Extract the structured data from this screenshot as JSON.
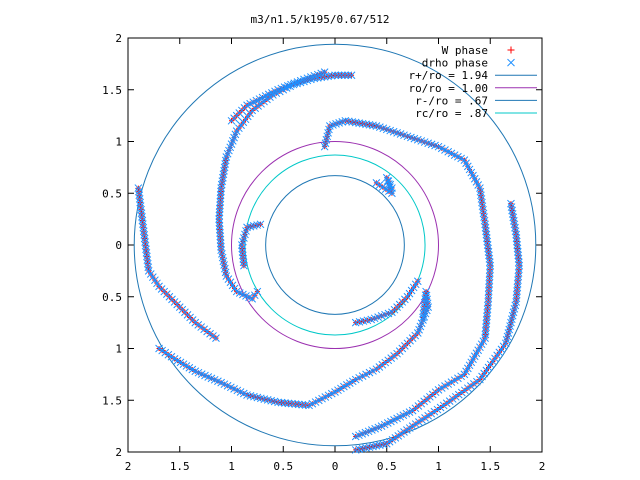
{
  "chart_data": {
    "type": "scatter",
    "title": "m3/n1.5/k195/0.67/512",
    "xlabel": "",
    "ylabel": "",
    "xlim": [
      -2,
      2
    ],
    "ylim": [
      -2,
      2
    ],
    "x_ticks": [
      -2,
      -1.5,
      -1,
      -0.5,
      0,
      0.5,
      1,
      1.5,
      2
    ],
    "y_ticks": [
      -2,
      -1.5,
      -1,
      -0.5,
      0,
      0.5,
      1,
      1.5,
      2
    ],
    "x_tick_labels": [
      "2",
      "1.5",
      "1",
      "0.5",
      "0",
      "0.5",
      "1",
      "1.5",
      "2"
    ],
    "y_tick_labels": [
      "2",
      "1.5",
      "1",
      "0.5",
      "0",
      "0.5",
      "1",
      "1.5",
      "2"
    ],
    "grid": false,
    "legend_position": "top-right",
    "series": [
      {
        "name": "W phase",
        "marker": "plus",
        "color": "#ff0000",
        "spirals": [
          {
            "id": "arm-a",
            "points": [
              [
                0.16,
                1.64
              ],
              [
                0.0,
                1.64
              ],
              [
                -0.2,
                1.61
              ],
              [
                -0.4,
                1.55
              ],
              [
                -0.6,
                1.45
              ],
              [
                -0.8,
                1.3
              ],
              [
                -0.95,
                1.1
              ],
              [
                -1.05,
                0.85
              ],
              [
                -1.1,
                0.55
              ],
              [
                -1.12,
                0.25
              ],
              [
                -1.1,
                -0.05
              ],
              [
                -1.05,
                -0.3
              ],
              [
                -0.95,
                -0.45
              ],
              [
                -0.8,
                -0.52
              ],
              [
                -0.75,
                -0.45
              ]
            ]
          },
          {
            "id": "arm-b",
            "points": [
              [
                -0.72,
                0.2
              ],
              [
                -0.85,
                0.17
              ],
              [
                -0.9,
                0.0
              ],
              [
                -0.88,
                -0.2
              ]
            ]
          },
          {
            "id": "arm-c",
            "points": [
              [
                -1.7,
                -1.0
              ],
              [
                -1.55,
                -1.1
              ],
              [
                -1.35,
                -1.22
              ],
              [
                -1.1,
                -1.33
              ],
              [
                -0.85,
                -1.45
              ],
              [
                -0.55,
                -1.52
              ],
              [
                -0.25,
                -1.55
              ],
              [
                0.0,
                -1.42
              ],
              [
                0.2,
                -1.3
              ],
              [
                0.4,
                -1.2
              ],
              [
                0.6,
                -1.05
              ],
              [
                0.8,
                -0.85
              ],
              [
                0.9,
                -0.6
              ],
              [
                0.88,
                -0.45
              ],
              [
                0.85,
                -0.7
              ]
            ]
          },
          {
            "id": "arm-d",
            "points": [
              [
                -0.1,
                0.95
              ],
              [
                -0.05,
                1.15
              ],
              [
                0.1,
                1.2
              ],
              [
                0.4,
                1.15
              ],
              [
                0.7,
                1.05
              ],
              [
                1.0,
                0.95
              ],
              [
                1.25,
                0.82
              ],
              [
                1.4,
                0.55
              ],
              [
                1.45,
                0.2
              ],
              [
                1.5,
                -0.2
              ],
              [
                1.48,
                -0.55
              ],
              [
                1.45,
                -0.9
              ],
              [
                1.25,
                -1.25
              ],
              [
                1.0,
                -1.4
              ],
              [
                0.75,
                -1.6
              ],
              [
                0.45,
                -1.75
              ],
              [
                0.2,
                -1.85
              ]
            ]
          },
          {
            "id": "arm-e",
            "points": [
              [
                -1.0,
                1.2
              ],
              [
                -0.85,
                1.35
              ],
              [
                -0.55,
                1.5
              ],
              [
                -0.3,
                1.6
              ],
              [
                -0.1,
                1.67
              ]
            ]
          },
          {
            "id": "arm-f",
            "points": [
              [
                -1.9,
                0.55
              ],
              [
                -1.8,
                -0.25
              ],
              [
                -1.7,
                -0.4
              ],
              [
                -1.55,
                -0.55
              ],
              [
                -1.35,
                -0.75
              ],
              [
                -1.15,
                -0.9
              ]
            ]
          },
          {
            "id": "arm-g",
            "points": [
              [
                0.4,
                0.6
              ],
              [
                0.55,
                0.5
              ],
              [
                0.5,
                0.65
              ],
              [
                0.55,
                0.55
              ]
            ]
          },
          {
            "id": "arm-h",
            "points": [
              [
                1.7,
                0.4
              ],
              [
                1.75,
                0.1
              ],
              [
                1.78,
                -0.2
              ],
              [
                1.75,
                -0.55
              ],
              [
                1.65,
                -0.95
              ],
              [
                1.4,
                -1.3
              ],
              [
                1.05,
                -1.55
              ],
              [
                0.75,
                -1.75
              ],
              [
                0.5,
                -1.92
              ],
              [
                0.2,
                -1.98
              ]
            ]
          },
          {
            "id": "arm-i",
            "points": [
              [
                0.2,
                -0.75
              ],
              [
                0.35,
                -0.72
              ],
              [
                0.55,
                -0.65
              ],
              [
                0.7,
                -0.5
              ],
              [
                0.8,
                -0.35
              ]
            ]
          }
        ]
      },
      {
        "name": "drho phase",
        "marker": "cross",
        "color": "#1e90ff",
        "spirals": [
          {
            "id": "arm-a",
            "points": [
              [
                0.16,
                1.64
              ],
              [
                0.0,
                1.64
              ],
              [
                -0.2,
                1.61
              ],
              [
                -0.4,
                1.55
              ],
              [
                -0.6,
                1.45
              ],
              [
                -0.8,
                1.3
              ],
              [
                -0.95,
                1.1
              ],
              [
                -1.05,
                0.85
              ],
              [
                -1.1,
                0.55
              ],
              [
                -1.12,
                0.25
              ],
              [
                -1.1,
                -0.05
              ],
              [
                -1.05,
                -0.3
              ],
              [
                -0.95,
                -0.45
              ],
              [
                -0.8,
                -0.52
              ],
              [
                -0.75,
                -0.45
              ]
            ]
          },
          {
            "id": "arm-b",
            "points": [
              [
                -0.72,
                0.2
              ],
              [
                -0.85,
                0.17
              ],
              [
                -0.9,
                0.0
              ],
              [
                -0.88,
                -0.2
              ]
            ]
          },
          {
            "id": "arm-c",
            "points": [
              [
                -1.7,
                -1.0
              ],
              [
                -1.55,
                -1.1
              ],
              [
                -1.35,
                -1.22
              ],
              [
                -1.1,
                -1.33
              ],
              [
                -0.85,
                -1.45
              ],
              [
                -0.55,
                -1.52
              ],
              [
                -0.25,
                -1.55
              ],
              [
                0.0,
                -1.42
              ],
              [
                0.2,
                -1.3
              ],
              [
                0.4,
                -1.2
              ],
              [
                0.6,
                -1.05
              ],
              [
                0.8,
                -0.85
              ],
              [
                0.9,
                -0.6
              ],
              [
                0.88,
                -0.45
              ],
              [
                0.85,
                -0.7
              ]
            ]
          },
          {
            "id": "arm-d",
            "points": [
              [
                -0.1,
                0.95
              ],
              [
                -0.05,
                1.15
              ],
              [
                0.1,
                1.2
              ],
              [
                0.4,
                1.15
              ],
              [
                0.7,
                1.05
              ],
              [
                1.0,
                0.95
              ],
              [
                1.25,
                0.82
              ],
              [
                1.4,
                0.55
              ],
              [
                1.45,
                0.2
              ],
              [
                1.5,
                -0.2
              ],
              [
                1.48,
                -0.55
              ],
              [
                1.45,
                -0.9
              ],
              [
                1.25,
                -1.25
              ],
              [
                1.0,
                -1.4
              ],
              [
                0.75,
                -1.6
              ],
              [
                0.45,
                -1.75
              ],
              [
                0.2,
                -1.85
              ]
            ]
          },
          {
            "id": "arm-e",
            "points": [
              [
                -1.0,
                1.2
              ],
              [
                -0.85,
                1.35
              ],
              [
                -0.55,
                1.5
              ],
              [
                -0.3,
                1.6
              ],
              [
                -0.1,
                1.67
              ]
            ]
          },
          {
            "id": "arm-f",
            "points": [
              [
                -1.9,
                0.55
              ],
              [
                -1.8,
                -0.25
              ],
              [
                -1.7,
                -0.4
              ],
              [
                -1.55,
                -0.55
              ],
              [
                -1.35,
                -0.75
              ],
              [
                -1.15,
                -0.9
              ]
            ]
          },
          {
            "id": "arm-g",
            "points": [
              [
                0.4,
                0.6
              ],
              [
                0.55,
                0.5
              ],
              [
                0.5,
                0.65
              ],
              [
                0.55,
                0.55
              ]
            ]
          },
          {
            "id": "arm-h",
            "points": [
              [
                1.7,
                0.4
              ],
              [
                1.75,
                0.1
              ],
              [
                1.78,
                -0.2
              ],
              [
                1.75,
                -0.55
              ],
              [
                1.65,
                -0.95
              ],
              [
                1.4,
                -1.3
              ],
              [
                1.05,
                -1.55
              ],
              [
                0.75,
                -1.75
              ],
              [
                0.5,
                -1.92
              ],
              [
                0.2,
                -1.98
              ]
            ]
          },
          {
            "id": "arm-i",
            "points": [
              [
                0.2,
                -0.75
              ],
              [
                0.35,
                -0.72
              ],
              [
                0.55,
                -0.65
              ],
              [
                0.7,
                -0.5
              ],
              [
                0.8,
                -0.35
              ]
            ]
          }
        ]
      }
    ],
    "circles": [
      {
        "name": "r+/ro = 1.94",
        "radius": 1.94,
        "color": "#1f77b4"
      },
      {
        "name": "ro/ro = 1.00",
        "radius": 1.0,
        "color": "#9b30b0"
      },
      {
        "name": "r-/ro = .67",
        "radius": 0.67,
        "color": "#1f77b4"
      },
      {
        "name": "rc/ro = .87",
        "radius": 0.87,
        "color": "#00c8c8"
      }
    ]
  }
}
